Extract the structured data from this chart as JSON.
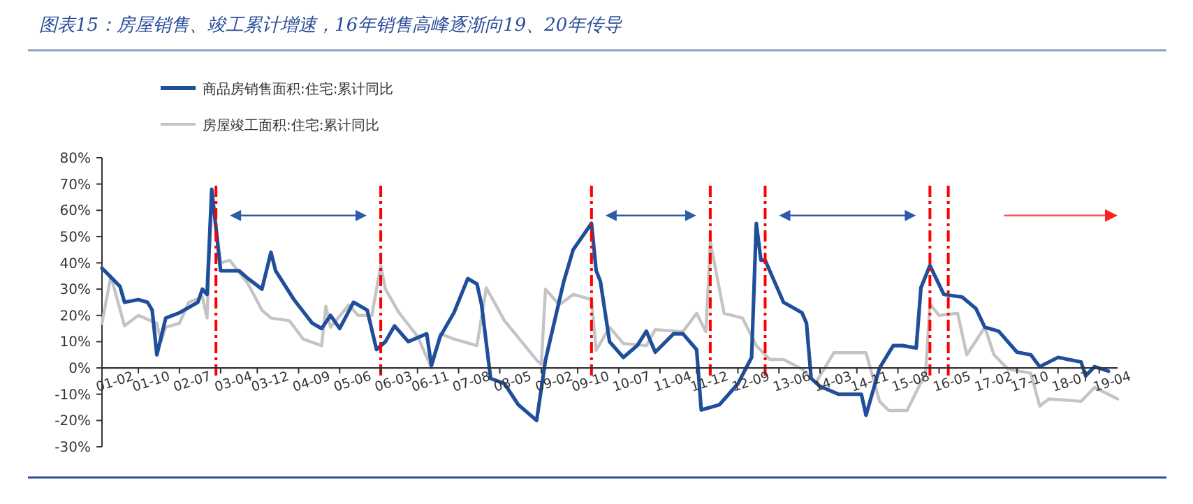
{
  "chart_data": {
    "type": "line",
    "title": "图表15：房屋销售、竣工累计增速，16年销售高峰逐渐向19、20年传导",
    "xlim": [
      "2001-02",
      "2019-08"
    ],
    "xticks": [
      {
        "value": "2001-02",
        "label": "01-02"
      },
      {
        "value": "2001-10",
        "label": "01-10"
      },
      {
        "value": "2002-07",
        "label": "02-07"
      },
      {
        "value": "2003-04",
        "label": "03-04"
      },
      {
        "value": "2003-12",
        "label": "03-12"
      },
      {
        "value": "2004-09",
        "label": "04-09"
      },
      {
        "value": "2005-06",
        "label": "05-06"
      },
      {
        "value": "2006-03",
        "label": "06-03"
      },
      {
        "value": "2006-11",
        "label": "06-11"
      },
      {
        "value": "2007-08",
        "label": "07-08"
      },
      {
        "value": "2008-05",
        "label": "08-05"
      },
      {
        "value": "2009-02",
        "label": "09-02"
      },
      {
        "value": "2009-10",
        "label": "09-10"
      },
      {
        "value": "2010-07",
        "label": "10-07"
      },
      {
        "value": "2011-04",
        "label": "11-04"
      },
      {
        "value": "2011-12",
        "label": "11-12"
      },
      {
        "value": "2012-09",
        "label": "12-09"
      },
      {
        "value": "2013-06",
        "label": "13-06"
      },
      {
        "value": "2014-03",
        "label": "14-03"
      },
      {
        "value": "2014-11",
        "label": "14-11"
      },
      {
        "value": "2015-08",
        "label": "15-08"
      },
      {
        "value": "2016-05",
        "label": "16-05"
      },
      {
        "value": "2017-02",
        "label": "17-02"
      },
      {
        "value": "2017-10",
        "label": "17-10"
      },
      {
        "value": "2018-07",
        "label": "18-07"
      },
      {
        "value": "2019-04",
        "label": "19-04"
      }
    ],
    "ylim": [
      -30,
      80
    ],
    "yticks": [
      {
        "value": -30,
        "label": "-30%"
      },
      {
        "value": -20,
        "label": "-20%"
      },
      {
        "value": -10,
        "label": "-10%"
      },
      {
        "value": 0,
        "label": "0%"
      },
      {
        "value": 10,
        "label": "10%"
      },
      {
        "value": 20,
        "label": "20%"
      },
      {
        "value": 30,
        "label": "30%"
      },
      {
        "value": 40,
        "label": "40%"
      },
      {
        "value": 50,
        "label": "50%"
      },
      {
        "value": 60,
        "label": "60%"
      },
      {
        "value": 70,
        "label": "70%"
      },
      {
        "value": 80,
        "label": "80%"
      }
    ],
    "legend": "top left",
    "grid": false,
    "series": [
      {
        "name": "房屋竣工面积:住宅:累计同比",
        "color": "#c4c4c4",
        "x": [
          "2001-02",
          "2001-04",
          "2001-07",
          "2001-10",
          "2002-02",
          "2002-03",
          "2002-04",
          "2002-07",
          "2002-09",
          "2002-12",
          "2003-01",
          "2003-02",
          "2003-04",
          "2003-06",
          "2003-10",
          "2004-01",
          "2004-03",
          "2004-07",
          "2004-10",
          "2005-02",
          "2005-03",
          "2005-04",
          "2005-08",
          "2005-10",
          "2006-01",
          "2006-03",
          "2006-04",
          "2006-07",
          "2006-11",
          "2007-02",
          "2007-04",
          "2007-07",
          "2007-12",
          "2008-02",
          "2008-06",
          "2009-01",
          "2009-02",
          "2009-03",
          "2009-06",
          "2009-09",
          "2010-01",
          "2010-02",
          "2010-05",
          "2010-08",
          "2011-01",
          "2011-03",
          "2011-09",
          "2011-12",
          "2012-02",
          "2012-03",
          "2012-06",
          "2012-10",
          "2013-01",
          "2013-04",
          "2013-07",
          "2013-11",
          "2014-02",
          "2014-06",
          "2015-01",
          "2015-04",
          "2015-06",
          "2015-10",
          "2016-02",
          "2016-03",
          "2016-05",
          "2016-09",
          "2016-11",
          "2017-03",
          "2017-05",
          "2017-08",
          "2018-01",
          "2018-03",
          "2018-05",
          "2018-12",
          "2019-03",
          "2019-08"
        ],
        "values": [
          17,
          35,
          16,
          20,
          17,
          10,
          15.5,
          17,
          25,
          27,
          19,
          68,
          40,
          41,
          32,
          22,
          19,
          18,
          11,
          8.5,
          23.5,
          15.5,
          24,
          20,
          20,
          39,
          30,
          21,
          12,
          0,
          13,
          11,
          8.5,
          30.5,
          18,
          3,
          1.4,
          30,
          24,
          28,
          26,
          6.7,
          15.5,
          9.3,
          8.5,
          14.6,
          13.8,
          20.8,
          13.8,
          48,
          20.8,
          19,
          8.5,
          3.2,
          3.2,
          -0.4,
          -5.6,
          5.8,
          5.8,
          -12.7,
          -16.2,
          -16.2,
          -2,
          24.3,
          20,
          20.8,
          5,
          15.5,
          5,
          -0.4,
          -2,
          -14.5,
          -11.8,
          -12.7,
          -7.4,
          -11.8
        ]
      },
      {
        "name": "商品房销售面积:住宅:累计同比",
        "color": "#1f4e9a",
        "x": [
          "2001-02",
          "2001-06",
          "2001-07",
          "2001-10",
          "2001-12",
          "2002-01",
          "2002-02",
          "2002-04",
          "2002-07",
          "2002-09",
          "2002-11",
          "2002-12",
          "2003-01",
          "2003-02",
          "2003-04",
          "2003-08",
          "2003-10",
          "2004-01",
          "2004-03",
          "2004-04",
          "2004-08",
          "2004-12",
          "2005-02",
          "2005-04",
          "2005-06",
          "2005-09",
          "2005-12",
          "2006-02",
          "2006-04",
          "2006-06",
          "2006-09",
          "2007-01",
          "2007-02",
          "2007-04",
          "2007-07",
          "2007-10",
          "2007-12",
          "2008-01",
          "2008-03",
          "2008-06",
          "2008-09",
          "2009-01",
          "2009-03",
          "2009-07",
          "2009-09",
          "2010-01",
          "2010-02",
          "2010-03",
          "2010-05",
          "2010-08",
          "2010-11",
          "2011-01",
          "2011-03",
          "2011-07",
          "2011-09",
          "2011-12",
          "2012-01",
          "2012-05",
          "2012-09",
          "2012-12",
          "2013-01",
          "2013-02",
          "2013-03",
          "2013-07",
          "2013-11",
          "2013-12",
          "2014-01",
          "2014-03",
          "2014-07",
          "2014-12",
          "2015-01",
          "2015-04",
          "2015-07",
          "2015-09",
          "2015-12",
          "2016-01",
          "2016-03",
          "2016-06",
          "2016-10",
          "2017-01",
          "2017-03",
          "2017-06",
          "2017-10",
          "2018-01",
          "2018-03",
          "2018-07",
          "2018-12",
          "2019-01",
          "2019-03",
          "2019-06"
        ],
        "values": [
          38,
          31,
          25,
          26,
          25,
          22,
          5,
          19,
          21,
          23,
          25,
          30,
          28,
          68,
          37,
          37,
          34,
          30,
          44,
          37,
          26,
          17,
          15,
          20,
          15,
          25,
          22,
          7,
          10,
          16,
          10,
          13,
          1,
          12,
          21,
          34,
          32,
          24,
          -4,
          -6,
          -14,
          -20,
          3,
          33,
          45,
          55,
          37,
          33,
          10,
          4,
          8.5,
          14,
          6,
          13,
          13,
          7,
          -16,
          -14,
          -6,
          4,
          55,
          41,
          41,
          25,
          21,
          17,
          -4,
          -7,
          -10,
          -10,
          -18,
          0,
          8.5,
          8.5,
          7.6,
          30.5,
          39,
          28,
          27,
          22.6,
          15.5,
          14,
          6,
          5,
          0.5,
          4,
          2.3,
          -3,
          0.5,
          -1.2
        ]
      }
    ],
    "ref_lines": [
      {
        "axis": "x",
        "value": "2003-03",
        "color": "#ff0000",
        "line_style": "dashdot"
      },
      {
        "axis": "x",
        "value": "2006-03",
        "color": "#ff0000",
        "line_style": "dashdot"
      },
      {
        "axis": "x",
        "value": "2010-01",
        "color": "#ff0000",
        "line_style": "dashdot"
      },
      {
        "axis": "x",
        "value": "2012-03",
        "color": "#ff0000",
        "line_style": "dashdot"
      },
      {
        "axis": "x",
        "value": "2013-03",
        "color": "#ff0000",
        "line_style": "dashdot"
      },
      {
        "axis": "x",
        "value": "2016-03",
        "color": "#ff0000",
        "line_style": "dashdot"
      },
      {
        "axis": "x",
        "value": "2016-07",
        "color": "#ff0000",
        "line_style": "dashdot"
      }
    ]
  }
}
